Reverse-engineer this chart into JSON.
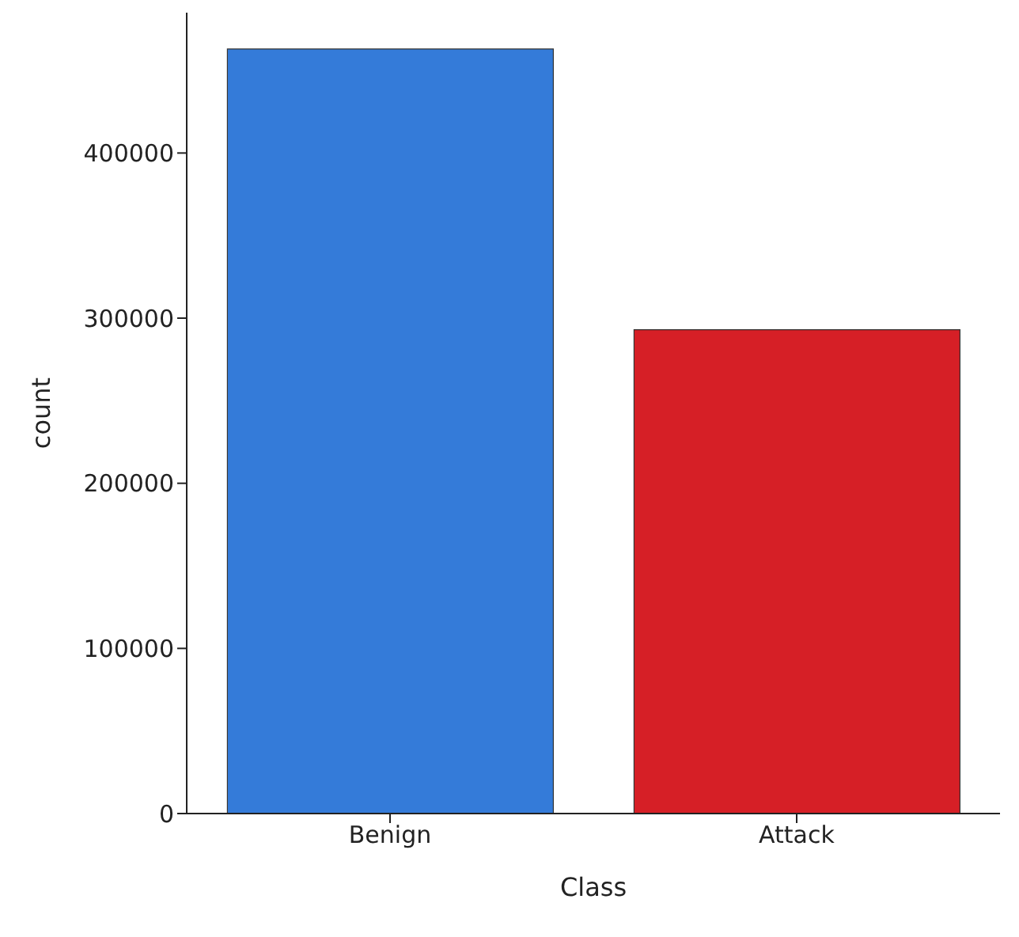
{
  "chart_data": {
    "type": "bar",
    "xlabel": "Class",
    "ylabel": "count",
    "categories": [
      "Benign",
      "Attack"
    ],
    "values": [
      463000,
      293000
    ],
    "colors": [
      "#347bd9",
      "#d61f26"
    ],
    "ylim": [
      0,
      485000
    ],
    "yticks": [
      0,
      100000,
      200000,
      300000,
      400000
    ],
    "grid": false,
    "legend": false
  }
}
